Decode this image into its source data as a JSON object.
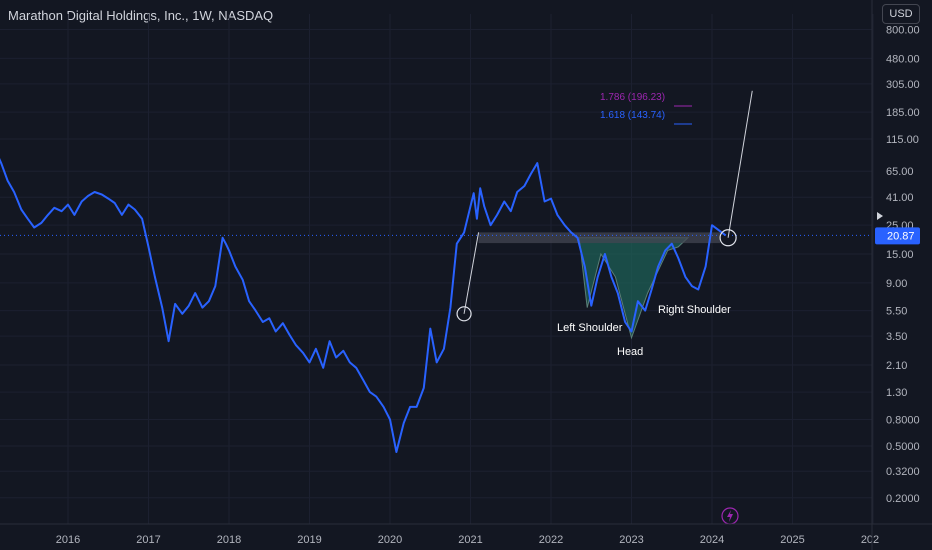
{
  "header": {
    "title": "Marathon Digital Holdings, Inc., 1W, NASDAQ",
    "currency": "USD"
  },
  "colors": {
    "background": "#131722",
    "price_line": "#2962ff",
    "trendline": "#d1d4dc",
    "fib_1786": "#9c27b0",
    "fib_1618": "#2962ff",
    "resistance_zone": "#434651",
    "pattern_fill": "#1e5f56",
    "current_price_badge": "#2962ff"
  },
  "chart_data": {
    "type": "line",
    "scale": "log",
    "title": "Marathon Digital Holdings, Inc., 1W, NASDAQ",
    "y_ticks": [
      "800.00",
      "480.00",
      "305.00",
      "185.00",
      "115.00",
      "65.00",
      "41.00",
      "25.00",
      "15.00",
      "9.00",
      "5.50",
      "3.50",
      "2.10",
      "1.30",
      "0.8000",
      "0.5000",
      "0.3200",
      "0.2000"
    ],
    "x_ticks": [
      "2016",
      "2017",
      "2018",
      "2019",
      "2020",
      "2021",
      "2022",
      "2023",
      "2024",
      "2025",
      "202"
    ],
    "ylim": [
      0.15,
      960
    ],
    "current_price": "20.87",
    "series": [
      {
        "x": [
          2015.0,
          2015.08,
          2015.17,
          2015.25,
          2015.33,
          2015.42,
          2015.5,
          2015.58,
          2015.67,
          2015.75,
          2015.83,
          2015.92,
          2016.0,
          2016.08,
          2016.17,
          2016.25,
          2016.33,
          2016.42,
          2016.5,
          2016.58,
          2016.67,
          2016.75,
          2016.83,
          2016.92,
          2017.0,
          2017.08,
          2017.17,
          2017.25,
          2017.33,
          2017.42,
          2017.5,
          2017.58,
          2017.67,
          2017.75,
          2017.83,
          2017.92,
          2017.96,
          2018.0,
          2018.08,
          2018.17,
          2018.25,
          2018.33,
          2018.42,
          2018.5,
          2018.58,
          2018.67,
          2018.75,
          2018.83,
          2018.92,
          2019.0,
          2019.08,
          2019.17,
          2019.25,
          2019.33,
          2019.42,
          2019.5,
          2019.58,
          2019.67,
          2019.75,
          2019.83,
          2019.92,
          2020.0,
          2020.08,
          2020.17,
          2020.25,
          2020.33,
          2020.42,
          2020.5,
          2020.58,
          2020.67,
          2020.75,
          2020.83,
          2020.92,
          2021.0,
          2021.04,
          2021.08,
          2021.12,
          2021.17,
          2021.25,
          2021.33,
          2021.42,
          2021.5,
          2021.58,
          2021.67,
          2021.75,
          2021.83,
          2021.92,
          2022.0,
          2022.08,
          2022.17,
          2022.25,
          2022.33,
          2022.42,
          2022.5,
          2022.58,
          2022.67,
          2022.75,
          2022.83,
          2022.92,
          2023.0,
          2023.08,
          2023.17,
          2023.25,
          2023.33,
          2023.42,
          2023.5,
          2023.58,
          2023.67,
          2023.75,
          2023.83,
          2023.92,
          2024.0,
          2024.08,
          2024.17
        ],
        "y": [
          115,
          100,
          75,
          55,
          45,
          33,
          28,
          24,
          26,
          30,
          34,
          32,
          36,
          30,
          38,
          42,
          45,
          43,
          40,
          37,
          30,
          36,
          33,
          28,
          17,
          10,
          5.8,
          3.2,
          6.2,
          5.2,
          6.0,
          7.5,
          5.8,
          6.5,
          8.5,
          20,
          18,
          16,
          12,
          9.5,
          6.5,
          5.5,
          4.5,
          4.8,
          3.8,
          4.4,
          3.6,
          3.0,
          2.6,
          2.2,
          2.8,
          2.0,
          3.2,
          2.4,
          2.7,
          2.2,
          2.0,
          1.6,
          1.3,
          1.2,
          1.0,
          0.8,
          0.45,
          0.75,
          1.0,
          1.0,
          1.4,
          4.0,
          2.2,
          2.8,
          5.8,
          18,
          22,
          35,
          44,
          28,
          48,
          35,
          25,
          30,
          38,
          32,
          45,
          50,
          62,
          75,
          38,
          40,
          30,
          25,
          22,
          20,
          12,
          6.0,
          10,
          15,
          10,
          7.5,
          4.5,
          3.8,
          6.5,
          5.5,
          8.0,
          12,
          16,
          18,
          14,
          10,
          8.5,
          8.0,
          12,
          25,
          23,
          20.87
        ]
      }
    ],
    "fib_levels": [
      {
        "label": "1.786 (196.23)",
        "value": 196.23
      },
      {
        "label": "1.618 (143.74)",
        "value": 143.74
      }
    ],
    "annotations": [
      {
        "label": "Left Shoulder"
      },
      {
        "label": "Head"
      },
      {
        "label": "Right Shoulder"
      }
    ]
  }
}
